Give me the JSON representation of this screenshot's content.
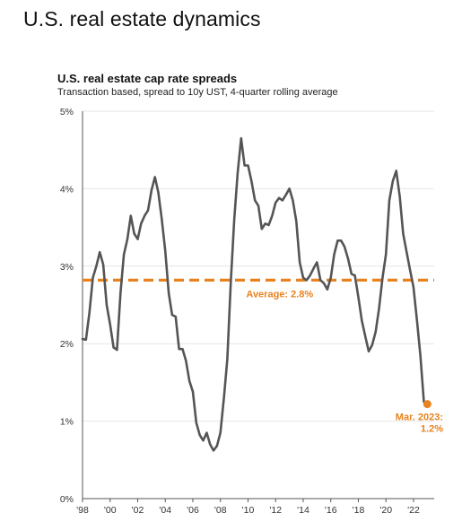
{
  "page": {
    "title": "U.S. real estate dynamics"
  },
  "colors": {
    "line": "#555555",
    "accent": "#e8821e",
    "grid": "#e6e6e6",
    "axis": "#555555"
  },
  "chart_data": {
    "type": "line",
    "title": "U.S. real estate cap rate spreads",
    "subtitle": "Transaction based, spread to 10y UST, 4-quarter rolling average",
    "xlabel": "",
    "ylabel": "",
    "xlim": [
      1998.0,
      2023.5
    ],
    "ylim": [
      0,
      5
    ],
    "y_ticks": [
      {
        "value": 0,
        "label": "0%"
      },
      {
        "value": 1,
        "label": "1%"
      },
      {
        "value": 2,
        "label": "2%"
      },
      {
        "value": 3,
        "label": "3%"
      },
      {
        "value": 4,
        "label": "4%"
      },
      {
        "value": 5,
        "label": "5%"
      }
    ],
    "x_ticks": [
      {
        "value": 1998,
        "label": "'98"
      },
      {
        "value": 2000,
        "label": "'00"
      },
      {
        "value": 2002,
        "label": "'02"
      },
      {
        "value": 2004,
        "label": "'04"
      },
      {
        "value": 2006,
        "label": "'06"
      },
      {
        "value": 2008,
        "label": "'08"
      },
      {
        "value": 2010,
        "label": "'10"
      },
      {
        "value": 2012,
        "label": "'12"
      },
      {
        "value": 2014,
        "label": "'14"
      },
      {
        "value": 2016,
        "label": "'16"
      },
      {
        "value": 2018,
        "label": "'18"
      },
      {
        "value": 2020,
        "label": "'20"
      },
      {
        "value": 2022,
        "label": "'22"
      }
    ],
    "grid": true,
    "series": [
      {
        "x": [
          1998.0,
          1998.25,
          1998.5,
          1998.75,
          1999.0,
          1999.25,
          1999.5,
          1999.75,
          2000.0,
          2000.25,
          2000.5,
          2000.75,
          2001.0,
          2001.25,
          2001.5,
          2001.75,
          2002.0,
          2002.25,
          2002.5,
          2002.75,
          2003.0,
          2003.25,
          2003.5,
          2003.75,
          2004.0,
          2004.25,
          2004.5,
          2004.75,
          2005.0,
          2005.25,
          2005.5,
          2005.75,
          2006.0,
          2006.25,
          2006.5,
          2006.75,
          2007.0,
          2007.25,
          2007.5,
          2007.75,
          2008.0,
          2008.25,
          2008.5,
          2008.75,
          2009.0,
          2009.25,
          2009.5,
          2009.75,
          2010.0,
          2010.25,
          2010.5,
          2010.75,
          2011.0,
          2011.25,
          2011.5,
          2011.75,
          2012.0,
          2012.25,
          2012.5,
          2012.75,
          2013.0,
          2013.25,
          2013.5,
          2013.75,
          2014.0,
          2014.25,
          2014.5,
          2014.75,
          2015.0,
          2015.25,
          2015.5,
          2015.75,
          2016.0,
          2016.25,
          2016.5,
          2016.75,
          2017.0,
          2017.25,
          2017.5,
          2017.75,
          2018.0,
          2018.25,
          2018.5,
          2018.75,
          2019.0,
          2019.25,
          2019.5,
          2019.75,
          2020.0,
          2020.25,
          2020.5,
          2020.75,
          2021.0,
          2021.25,
          2021.5,
          2021.75,
          2022.0,
          2022.25,
          2022.5,
          2022.75,
          2023.0
        ],
        "values": [
          2.06,
          2.05,
          2.4,
          2.85,
          3.0,
          3.18,
          3.02,
          2.5,
          2.25,
          1.95,
          1.92,
          2.65,
          3.15,
          3.35,
          3.65,
          3.42,
          3.35,
          3.55,
          3.65,
          3.72,
          3.98,
          4.15,
          3.95,
          3.6,
          3.2,
          2.65,
          2.37,
          2.35,
          1.93,
          1.93,
          1.78,
          1.52,
          1.38,
          0.98,
          0.82,
          0.75,
          0.85,
          0.7,
          0.62,
          0.68,
          0.85,
          1.3,
          1.8,
          2.8,
          3.6,
          4.2,
          4.65,
          4.3,
          4.3,
          4.1,
          3.85,
          3.78,
          3.48,
          3.55,
          3.53,
          3.65,
          3.82,
          3.88,
          3.85,
          3.92,
          4.0,
          3.85,
          3.58,
          3.05,
          2.85,
          2.82,
          2.88,
          2.97,
          3.05,
          2.82,
          2.78,
          2.7,
          2.85,
          3.15,
          3.33,
          3.33,
          3.25,
          3.1,
          2.9,
          2.88,
          2.6,
          2.3,
          2.1,
          1.9,
          1.98,
          2.15,
          2.45,
          2.85,
          3.15,
          3.85,
          4.1,
          4.23,
          3.9,
          3.42,
          3.18,
          2.95,
          2.73,
          2.3,
          1.85,
          1.25,
          1.22
        ]
      }
    ],
    "average": {
      "value": 2.82,
      "label": "Average: 2.8%"
    },
    "last_point": {
      "x": 2023.0,
      "y": 1.22,
      "label_line1": "Mar. 2023:",
      "label_line2": "1.2%"
    }
  }
}
